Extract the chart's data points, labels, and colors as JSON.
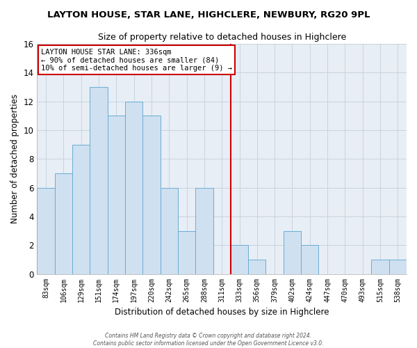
{
  "title": "LAYTON HOUSE, STAR LANE, HIGHCLERE, NEWBURY, RG20 9PL",
  "subtitle": "Size of property relative to detached houses in Highclere",
  "xlabel": "Distribution of detached houses by size in Highclere",
  "ylabel": "Number of detached properties",
  "bar_labels": [
    "83sqm",
    "106sqm",
    "129sqm",
    "151sqm",
    "174sqm",
    "197sqm",
    "220sqm",
    "242sqm",
    "265sqm",
    "288sqm",
    "311sqm",
    "333sqm",
    "356sqm",
    "379sqm",
    "402sqm",
    "424sqm",
    "447sqm",
    "470sqm",
    "493sqm",
    "515sqm",
    "538sqm"
  ],
  "bar_values": [
    6,
    7,
    9,
    13,
    11,
    12,
    11,
    6,
    3,
    6,
    0,
    2,
    1,
    0,
    3,
    2,
    0,
    0,
    0,
    1,
    1
  ],
  "bar_color": "#cfe0f0",
  "bar_edge_color": "#6aadd5",
  "vline_index": 11,
  "vline_color": "#cc0000",
  "annotation_line1": "LAYTON HOUSE STAR LANE: 336sqm",
  "annotation_line2": "← 90% of detached houses are smaller (84)",
  "annotation_line3": "10% of semi-detached houses are larger (9) →",
  "annotation_box_fc": "#ffffff",
  "annotation_box_ec": "#cc0000",
  "ylim": [
    0,
    16
  ],
  "yticks": [
    0,
    2,
    4,
    6,
    8,
    10,
    12,
    14,
    16
  ],
  "footer_line1": "Contains HM Land Registry data © Crown copyright and database right 2024.",
  "footer_line2": "Contains public sector information licensed under the Open Government Licence v3.0.",
  "bg_color": "#ffffff",
  "plot_bg_color": "#e8eef5",
  "grid_color": "#c8d4e0"
}
